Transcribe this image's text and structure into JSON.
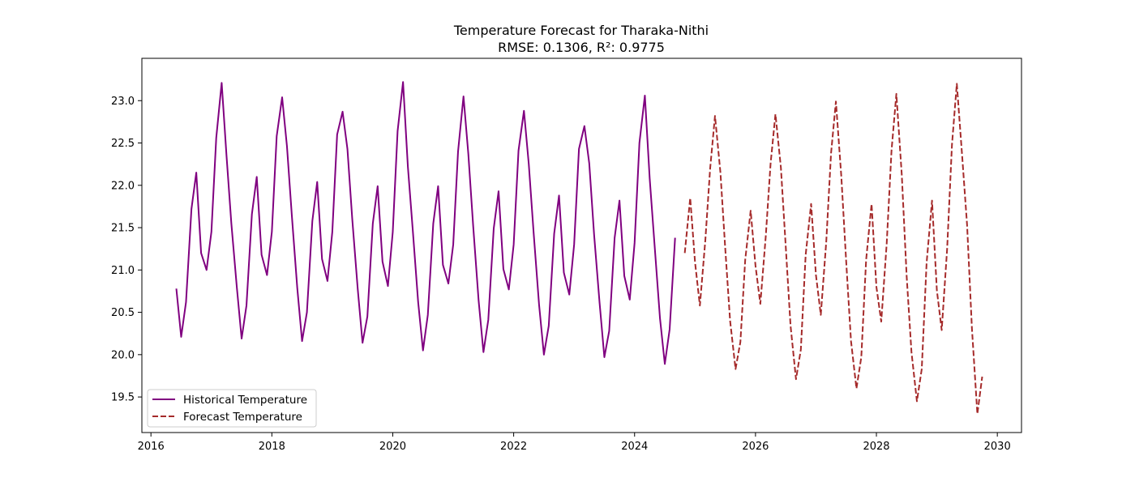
{
  "chart_data": {
    "type": "line",
    "title": "Temperature Forecast for Tharaka-Nithi",
    "subtitle": "RMSE: 0.1306, R²: 0.9775",
    "xlabel": "",
    "ylabel": "",
    "xlim": [
      2015.85,
      2030.4
    ],
    "ylim": [
      19.08,
      23.5
    ],
    "x_ticks": [
      2016,
      2018,
      2020,
      2022,
      2024,
      2026,
      2028,
      2030
    ],
    "y_ticks": [
      19.5,
      20.0,
      20.5,
      21.0,
      21.5,
      22.0,
      22.5,
      23.0
    ],
    "y_tick_labels": [
      "19.5",
      "20.0",
      "20.5",
      "21.0",
      "21.5",
      "22.0",
      "22.5",
      "23.0"
    ],
    "grid": false,
    "legend_position": "lower-left",
    "series": [
      {
        "name": "Historical Temperature",
        "color": "#800080",
        "style": "solid",
        "x": [
          2016.42,
          2016.5,
          2016.58,
          2016.67,
          2016.75,
          2016.83,
          2016.92,
          2017.0,
          2017.08,
          2017.17,
          2017.25,
          2017.33,
          2017.42,
          2017.5,
          2017.58,
          2017.67,
          2017.75,
          2017.83,
          2017.92,
          2018.0,
          2018.08,
          2018.17,
          2018.25,
          2018.33,
          2018.42,
          2018.5,
          2018.58,
          2018.67,
          2018.75,
          2018.83,
          2018.92,
          2019.0,
          2019.08,
          2019.17,
          2019.25,
          2019.33,
          2019.42,
          2019.5,
          2019.58,
          2019.67,
          2019.75,
          2019.83,
          2019.92,
          2020.0,
          2020.08,
          2020.17,
          2020.25,
          2020.33,
          2020.42,
          2020.5,
          2020.58,
          2020.67,
          2020.75,
          2020.83,
          2020.92,
          2021.0,
          2021.08,
          2021.17,
          2021.25,
          2021.33,
          2021.42,
          2021.5,
          2021.58,
          2021.67,
          2021.75,
          2021.83,
          2021.92,
          2022.0,
          2022.08,
          2022.17,
          2022.25,
          2022.33,
          2022.42,
          2022.5,
          2022.58,
          2022.67,
          2022.75,
          2022.83,
          2022.92,
          2023.0,
          2023.08,
          2023.17,
          2023.25,
          2023.33,
          2023.42,
          2023.5,
          2023.58,
          2023.67,
          2023.75,
          2023.83,
          2023.92,
          2024.0,
          2024.08,
          2024.17,
          2024.25,
          2024.33,
          2024.42,
          2024.5,
          2024.58,
          2024.67
        ],
        "values": [
          20.78,
          20.21,
          20.62,
          21.72,
          22.15,
          21.2,
          21.0,
          21.45,
          22.56,
          23.21,
          22.35,
          21.55,
          20.8,
          20.19,
          20.58,
          21.66,
          22.1,
          21.18,
          20.94,
          21.45,
          22.58,
          23.04,
          22.46,
          21.65,
          20.79,
          20.16,
          20.5,
          21.58,
          22.04,
          21.13,
          20.87,
          21.45,
          22.6,
          22.87,
          22.43,
          21.6,
          20.78,
          20.14,
          20.45,
          21.55,
          21.99,
          21.1,
          20.81,
          21.45,
          22.64,
          23.22,
          22.22,
          21.48,
          20.62,
          20.05,
          20.47,
          21.55,
          21.99,
          21.06,
          20.84,
          21.3,
          22.4,
          23.05,
          22.37,
          21.52,
          20.64,
          20.03,
          20.41,
          21.49,
          21.93,
          21.01,
          20.77,
          21.3,
          22.41,
          22.88,
          22.25,
          21.44,
          20.59,
          20.0,
          20.34,
          21.43,
          21.88,
          20.97,
          20.71,
          21.3,
          22.43,
          22.7,
          22.26,
          21.42,
          20.62,
          19.97,
          20.28,
          21.38,
          21.82,
          20.93,
          20.65,
          21.32,
          22.5,
          23.06,
          22.08,
          21.3,
          20.43,
          19.89,
          20.3,
          21.38
        ]
      },
      {
        "name": "Forecast Temperature",
        "color": "#a52a2a",
        "style": "dashed",
        "x": [
          2024.83,
          2024.92,
          2025.0,
          2025.08,
          2025.17,
          2025.25,
          2025.33,
          2025.42,
          2025.5,
          2025.58,
          2025.67,
          2025.75,
          2025.83,
          2025.92,
          2026.0,
          2026.08,
          2026.17,
          2026.25,
          2026.33,
          2026.42,
          2026.5,
          2026.58,
          2026.67,
          2026.75,
          2026.83,
          2026.92,
          2027.0,
          2027.08,
          2027.17,
          2027.25,
          2027.33,
          2027.42,
          2027.5,
          2027.58,
          2027.67,
          2027.75,
          2027.83,
          2027.92,
          2028.0,
          2028.08,
          2028.17,
          2028.25,
          2028.33,
          2028.42,
          2028.5,
          2028.58,
          2028.67,
          2028.75,
          2028.83,
          2028.92,
          2029.0,
          2029.08,
          2029.17,
          2029.25,
          2029.33,
          2029.42,
          2029.5,
          2029.58,
          2029.67,
          2029.75
        ],
        "values": [
          21.2,
          21.85,
          21.09,
          20.58,
          21.35,
          22.2,
          22.82,
          22.15,
          21.25,
          20.4,
          19.83,
          20.15,
          21.12,
          21.7,
          21.05,
          20.6,
          21.4,
          22.26,
          22.84,
          22.21,
          21.28,
          20.34,
          19.71,
          20.06,
          21.18,
          21.78,
          20.94,
          20.47,
          21.33,
          22.38,
          22.99,
          22.1,
          21.1,
          20.16,
          19.6,
          19.97,
          21.12,
          21.78,
          20.8,
          20.39,
          21.31,
          22.41,
          23.08,
          22.12,
          20.93,
          20.03,
          19.45,
          19.83,
          21.08,
          21.82,
          20.76,
          20.29,
          21.25,
          22.48,
          23.2,
          22.33,
          21.53,
          20.31,
          19.3,
          19.74
        ]
      }
    ]
  }
}
